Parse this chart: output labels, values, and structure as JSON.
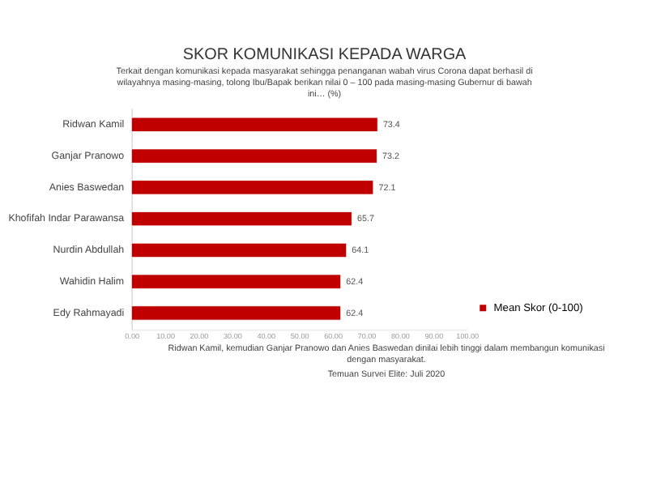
{
  "chart_data": {
    "type": "bar",
    "orientation": "horizontal",
    "title": "SKOR KOMUNIKASI KEPADA WARGA",
    "subtitle": "Terkait  dengan komunikasi kepada masyarakat sehingga penanganan wabah virus Corona dapat berhasil di wilayahnya masing-masing, tolong Ibu/Bapak berikan nilai 0 – 100 pada masing-masing Gubernur di bawah ini… (%)",
    "categories": [
      "Ridwan Kamil",
      "Ganjar Pranowo",
      "Anies Baswedan",
      "Khofifah Indar Parawansa",
      "Nurdin Abdullah",
      "Wahidin Halim",
      "Edy Rahmayadi"
    ],
    "series": [
      {
        "name": "Mean Skor (0-100)",
        "color": "#c00000",
        "values": [
          73.4,
          73.2,
          72.1,
          65.7,
          64.1,
          62.4,
          62.4
        ]
      }
    ],
    "data_labels": true,
    "xlim": [
      0,
      100
    ],
    "xticks": [
      {
        "value": 0,
        "label": "0.00"
      },
      {
        "value": 10,
        "label": "10.00"
      },
      {
        "value": 20,
        "label": "20.00"
      },
      {
        "value": 30,
        "label": "30.00"
      },
      {
        "value": 40,
        "label": "40.00"
      },
      {
        "value": 50,
        "label": "50.00"
      },
      {
        "value": 60,
        "label": "60.00"
      },
      {
        "value": 70,
        "label": "70.00"
      },
      {
        "value": 80,
        "label": "80.00"
      },
      {
        "value": 90,
        "label": "90.00"
      },
      {
        "value": 100,
        "label": "100.00"
      }
    ],
    "grid": false,
    "legend": "bottom right",
    "annotations": [
      "Ridwan Kamil, kemudian Ganjar Pranowo dan Anies Baswedan dinilai lebih tinggi dalam membangun komunikasi dengan masyarakat.",
      "Temuan Survei Elite: Juli 2020"
    ]
  }
}
